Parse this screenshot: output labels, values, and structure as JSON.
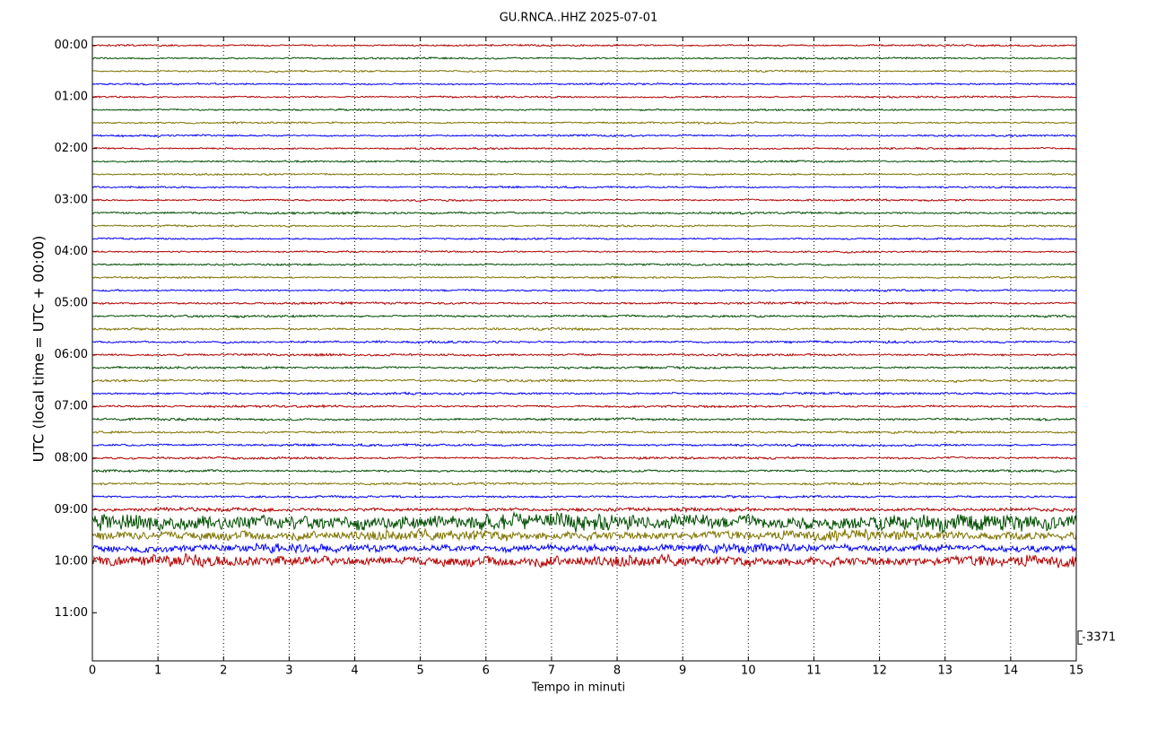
{
  "chart_data": {
    "type": "helicorder",
    "title": "GU.RNCA..HHZ 2025-07-01",
    "xlabel": "Tempo in minuti",
    "ylabel": "UTC (local time = UTC + 00:00)",
    "xlim": [
      0,
      15
    ],
    "xticks": [
      0,
      1,
      2,
      3,
      4,
      5,
      6,
      7,
      8,
      9,
      10,
      11,
      12,
      13,
      14,
      15
    ],
    "ylim": [
      -10,
      716
    ],
    "yticks": [
      {
        "value": 0,
        "label": "00:00"
      },
      {
        "value": 60,
        "label": "01:00"
      },
      {
        "value": 120,
        "label": "02:00"
      },
      {
        "value": 180,
        "label": "03:00"
      },
      {
        "value": 240,
        "label": "04:00"
      },
      {
        "value": 300,
        "label": "05:00"
      },
      {
        "value": 360,
        "label": "06:00"
      },
      {
        "value": 420,
        "label": "07:00"
      },
      {
        "value": 480,
        "label": "08:00"
      },
      {
        "value": 540,
        "label": "09:00"
      },
      {
        "value": 600,
        "label": "10:00"
      },
      {
        "value": 660,
        "label": "11:00"
      }
    ],
    "grid": true,
    "colors": [
      "#b30000",
      "#004d00",
      "#7f7300",
      "#0000ff"
    ],
    "scale": 3371,
    "traces": [
      {
        "start": 0,
        "amplitude": 200
      },
      {
        "start": 15,
        "amplitude": 200
      },
      {
        "start": 30,
        "amplitude": 200
      },
      {
        "start": 45,
        "amplitude": 200
      },
      {
        "start": 60,
        "amplitude": 200
      },
      {
        "start": 75,
        "amplitude": 200
      },
      {
        "start": 90,
        "amplitude": 200
      },
      {
        "start": 105,
        "amplitude": 200
      },
      {
        "start": 120,
        "amplitude": 200
      },
      {
        "start": 135,
        "amplitude": 200
      },
      {
        "start": 150,
        "amplitude": 200
      },
      {
        "start": 165,
        "amplitude": 200
      },
      {
        "start": 180,
        "amplitude": 200
      },
      {
        "start": 195,
        "amplitude": 250
      },
      {
        "start": 210,
        "amplitude": 200
      },
      {
        "start": 225,
        "amplitude": 200
      },
      {
        "start": 240,
        "amplitude": 200
      },
      {
        "start": 255,
        "amplitude": 200
      },
      {
        "start": 270,
        "amplitude": 200
      },
      {
        "start": 285,
        "amplitude": 200
      },
      {
        "start": 300,
        "amplitude": 250
      },
      {
        "start": 315,
        "amplitude": 250
      },
      {
        "start": 330,
        "amplitude": 250
      },
      {
        "start": 345,
        "amplitude": 250
      },
      {
        "start": 360,
        "amplitude": 250
      },
      {
        "start": 375,
        "amplitude": 250
      },
      {
        "start": 390,
        "amplitude": 250
      },
      {
        "start": 405,
        "amplitude": 250
      },
      {
        "start": 420,
        "amplitude": 250
      },
      {
        "start": 435,
        "amplitude": 250
      },
      {
        "start": 450,
        "amplitude": 250
      },
      {
        "start": 465,
        "amplitude": 250
      },
      {
        "start": 480,
        "amplitude": 250
      },
      {
        "start": 495,
        "amplitude": 250
      },
      {
        "start": 510,
        "amplitude": 250
      },
      {
        "start": 525,
        "amplitude": 250
      },
      {
        "start": 540,
        "amplitude": 400
      },
      {
        "start": 555,
        "amplitude": 1800
      },
      {
        "start": 570,
        "amplitude": 1100
      },
      {
        "start": 585,
        "amplitude": 900
      },
      {
        "start": 600,
        "amplitude": 1200
      }
    ]
  }
}
